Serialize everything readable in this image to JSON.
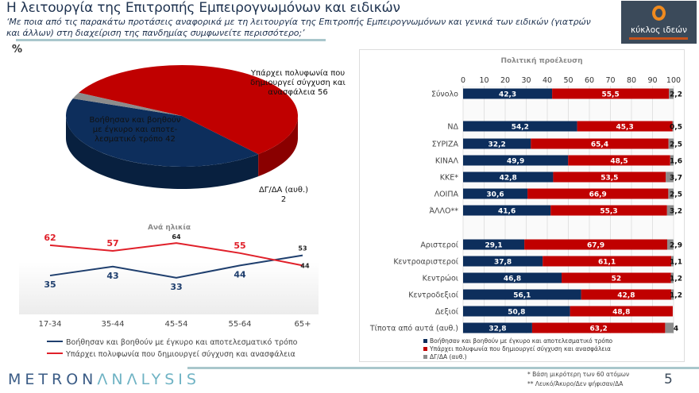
{
  "header": {
    "title": "Η λειτουργία της Επιτροπής Εμπειρογνωμόνων και ειδικών",
    "subtitle": "‘Με ποια από τις παρακάτω προτάσεις αναφορικά με τη λειτουργία της Επιτροπής Εμπειρογνωμόνων και γενικά των ειδικών (γιατρών και άλλων) στη διαχείριση της πανδημίας συμφωνείτε περισσότερο;’",
    "unit": "%"
  },
  "logo": {
    "text": "κύκλος ιδεών",
    "tagline": "για την εθνική αναγέννηση"
  },
  "colors": {
    "helped": "#0d2e5c",
    "confusion": "#c00000",
    "dk": "#8c8c8c",
    "line_red": "#e0202a",
    "line_blue": "#1f3f6e"
  },
  "chart_data": [
    {
      "type": "pie",
      "slices": [
        {
          "label": "Βοήθησαν και βοηθούν με έγκυρο και αποτε-λεσματικό τρόπο",
          "value": 42
        },
        {
          "label": "Υπάρχει πολυφωνία που δημιουργεί σύγχυση και ανασφάλεια",
          "value": 56
        },
        {
          "label": "ΔΓ/ΔΑ (αυθ.)",
          "value": 2
        }
      ]
    },
    {
      "type": "line",
      "title": "Ανά ηλικία",
      "categories": [
        "17-34",
        "35-44",
        "45-54",
        "55-64",
        "65+"
      ],
      "ylim": [
        0,
        80
      ],
      "grid": false,
      "series": [
        {
          "name": "Βοήθησαν και βοηθούν  με έγκυρο και αποτελεσματικό τρόπο",
          "values": [
            35,
            43,
            33,
            44,
            53
          ]
        },
        {
          "name": "Υπάρχει πολυφωνία που δημιουργεί σύγχυση και ανασφάλεια",
          "values": [
            62,
            57,
            64,
            55,
            44
          ]
        }
      ],
      "legend": "bottom"
    },
    {
      "type": "bar",
      "stacked": true,
      "orientation": "horizontal",
      "title": "Πολιτική προέλευση",
      "xlim": [
        0,
        100
      ],
      "xticks": [
        "0",
        "10",
        "20",
        "30",
        "40",
        "50",
        "60",
        "70",
        "80",
        "90",
        "100"
      ],
      "grid": true,
      "legend": "bottom",
      "series_names": [
        "Βοήθησαν και βοηθούν  με έγκυρο και αποτελεσματικό τρόπο",
        "Υπάρχει πολυφωνία που δημιουργεί σύγχυση και ανασφάλεια",
        "ΔΓ/ΔΑ (αυθ.)"
      ],
      "rows": [
        {
          "category": "Σύνολο",
          "values": [
            42.3,
            55.5,
            2.2
          ],
          "labels": [
            "42,3",
            "55,5",
            "2,2"
          ]
        },
        {
          "category": "ΝΔ",
          "values": [
            54.2,
            45.3,
            0.5
          ],
          "labels": [
            "54,2",
            "45,3",
            "0,5"
          ]
        },
        {
          "category": "ΣΥΡΙΖΑ",
          "values": [
            32.2,
            65.4,
            2.5
          ],
          "labels": [
            "32,2",
            "65,4",
            "2,5"
          ]
        },
        {
          "category": "ΚΙΝΑΛ",
          "values": [
            49.9,
            48.5,
            1.6
          ],
          "labels": [
            "49,9",
            "48,5",
            "1,6"
          ]
        },
        {
          "category": "ΚΚΕ*",
          "values": [
            42.8,
            53.5,
            3.7
          ],
          "labels": [
            "42,8",
            "53,5",
            "3,7"
          ]
        },
        {
          "category": "ΛΟΙΠΑ",
          "values": [
            30.6,
            66.9,
            2.5
          ],
          "labels": [
            "30,6",
            "66,9",
            "2,5"
          ]
        },
        {
          "category": "ΆΛΛΟ**",
          "values": [
            41.6,
            55.3,
            3.2
          ],
          "labels": [
            "41,6",
            "55,3",
            "3,2"
          ]
        },
        {
          "category": "Αριστεροί",
          "values": [
            29.1,
            67.9,
            2.9
          ],
          "labels": [
            "29,1",
            "67,9",
            "2,9"
          ]
        },
        {
          "category": "Κεντροαριστεροί",
          "values": [
            37.8,
            61.1,
            1.1
          ],
          "labels": [
            "37,8",
            "61,1",
            "1,1"
          ]
        },
        {
          "category": "Κεντρώοι",
          "values": [
            46.8,
            52,
            1.2
          ],
          "labels": [
            "46,8",
            "52",
            "1,2"
          ]
        },
        {
          "category": "Κεντροδεξιοί",
          "values": [
            56.1,
            42.8,
            1.2
          ],
          "labels": [
            "56,1",
            "42,8",
            "1,2"
          ]
        },
        {
          "category": "Δεξιοί",
          "values": [
            50.8,
            48.8,
            0
          ],
          "labels": [
            "50,8",
            "48,8",
            ""
          ]
        },
        {
          "category": "Τίποτα από αυτά (αυθ.)",
          "values": [
            32.8,
            63.2,
            4
          ],
          "labels": [
            "32,8",
            "63,2",
            "4"
          ]
        }
      ]
    }
  ],
  "pie_labels": {
    "helped": [
      "Βοήθησαν και βοηθούν",
      "με έγκυρο και αποτε-",
      "λεσματικό τρόπο 42"
    ],
    "confusion": [
      "Υπάρχει πολυφωνία που",
      "δημιουργεί σύγχυση και",
      "ανασφάλεια 56"
    ],
    "dk": [
      "ΔΓ/ΔΑ (αυθ.)",
      "2"
    ]
  },
  "footer": {
    "brand_a": "METRON",
    "brand_b": "ΛNΛLYSIS",
    "note1": "*  Βάση μικρότερη των 60 ατόμων",
    "note2": "** Λευκό/Άκυρο/Δεν ψήφισαν/ΔΑ",
    "page": "5"
  }
}
